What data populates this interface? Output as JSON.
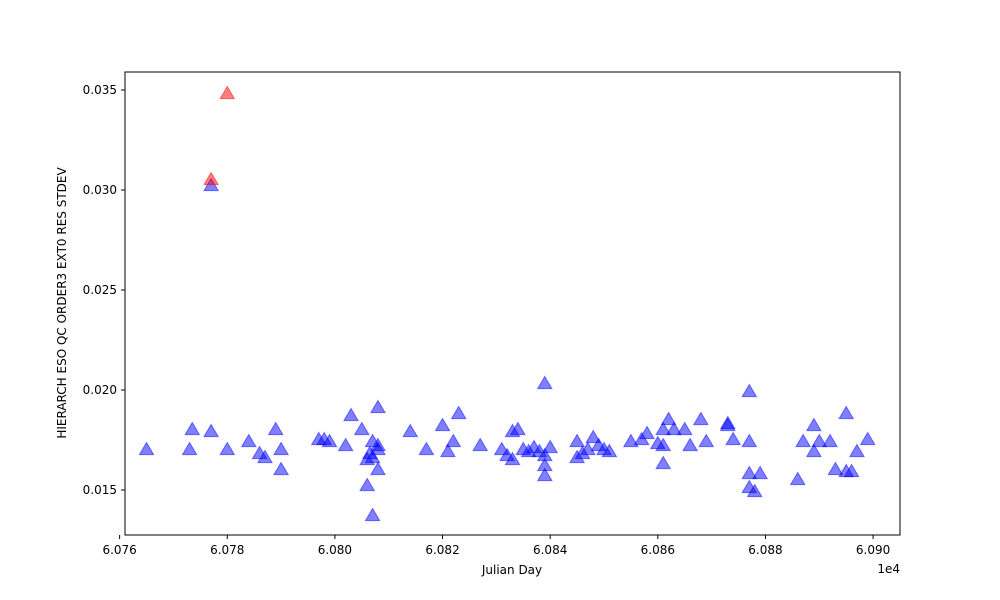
{
  "chart_data": {
    "type": "scatter",
    "xlabel": "Julian Day",
    "ylabel": "HIERARCH ESO QC ORDER3 EXT0 RES STDEV",
    "x_offset_label": "1e4",
    "xlim": [
      6.0761,
      6.0905
    ],
    "ylim": [
      0.01275,
      0.0359
    ],
    "x_tick_values": [
      6.076,
      6.078,
      6.08,
      6.082,
      6.084,
      6.086,
      6.088,
      6.09
    ],
    "x_tick_labels": [
      "6.076",
      "6.078",
      "6.080",
      "6.082",
      "6.084",
      "6.086",
      "6.088",
      "6.090"
    ],
    "y_tick_values": [
      0.015,
      0.02,
      0.025,
      0.03,
      0.035
    ],
    "y_tick_labels": [
      "0.015",
      "0.020",
      "0.025",
      "0.030",
      "0.035"
    ],
    "grid": false,
    "marker": "triangle-up",
    "series": [
      {
        "color": "#0000ff",
        "points": [
          [
            6.0765,
            0.017
          ],
          [
            6.0773,
            0.017
          ],
          [
            6.07735,
            0.018
          ],
          [
            6.0777,
            0.0179
          ],
          [
            6.0777,
            0.0302
          ],
          [
            6.078,
            0.017
          ],
          [
            6.0784,
            0.0174
          ],
          [
            6.0786,
            0.0168
          ],
          [
            6.0787,
            0.0166
          ],
          [
            6.0789,
            0.018
          ],
          [
            6.079,
            0.016
          ],
          [
            6.079,
            0.017
          ],
          [
            6.0797,
            0.0175
          ],
          [
            6.0798,
            0.0175
          ],
          [
            6.0799,
            0.0174
          ],
          [
            6.0802,
            0.0172
          ],
          [
            6.0803,
            0.0187
          ],
          [
            6.0805,
            0.018
          ],
          [
            6.0806,
            0.0152
          ],
          [
            6.0806,
            0.0165
          ],
          [
            6.08065,
            0.0168
          ],
          [
            6.0807,
            0.0137
          ],
          [
            6.0807,
            0.0174
          ],
          [
            6.0807,
            0.0166
          ],
          [
            6.0808,
            0.0172
          ],
          [
            6.0808,
            0.0191
          ],
          [
            6.0808,
            0.017
          ],
          [
            6.0808,
            0.016
          ],
          [
            6.0814,
            0.0179
          ],
          [
            6.0817,
            0.017
          ],
          [
            6.082,
            0.0182
          ],
          [
            6.0821,
            0.0169
          ],
          [
            6.0822,
            0.0174
          ],
          [
            6.0823,
            0.0188
          ],
          [
            6.0827,
            0.0172
          ],
          [
            6.0831,
            0.017
          ],
          [
            6.0832,
            0.0167
          ],
          [
            6.0833,
            0.0165
          ],
          [
            6.0833,
            0.0179
          ],
          [
            6.0834,
            0.018
          ],
          [
            6.0835,
            0.017
          ],
          [
            6.0836,
            0.0169
          ],
          [
            6.0837,
            0.0171
          ],
          [
            6.0838,
            0.0169
          ],
          [
            6.0839,
            0.0167
          ],
          [
            6.0839,
            0.0203
          ],
          [
            6.0839,
            0.0162
          ],
          [
            6.0839,
            0.0157
          ],
          [
            6.084,
            0.0171
          ],
          [
            6.0845,
            0.0174
          ],
          [
            6.0845,
            0.0166
          ],
          [
            6.0846,
            0.0168
          ],
          [
            6.0847,
            0.017
          ],
          [
            6.0848,
            0.0176
          ],
          [
            6.0849,
            0.0172
          ],
          [
            6.085,
            0.017
          ],
          [
            6.0851,
            0.0169
          ],
          [
            6.0855,
            0.0174
          ],
          [
            6.0857,
            0.0175
          ],
          [
            6.0858,
            0.0178
          ],
          [
            6.086,
            0.0173
          ],
          [
            6.0861,
            0.018
          ],
          [
            6.0861,
            0.0172
          ],
          [
            6.0861,
            0.0163
          ],
          [
            6.0862,
            0.0185
          ],
          [
            6.0863,
            0.018
          ],
          [
            6.0865,
            0.018
          ],
          [
            6.0866,
            0.0172
          ],
          [
            6.0868,
            0.0185
          ],
          [
            6.0869,
            0.0174
          ],
          [
            6.0873,
            0.0183
          ],
          [
            6.0873,
            0.0182
          ],
          [
            6.0874,
            0.0175
          ],
          [
            6.0877,
            0.0199
          ],
          [
            6.0877,
            0.0174
          ],
          [
            6.0877,
            0.0158
          ],
          [
            6.0877,
            0.0151
          ],
          [
            6.0878,
            0.0149
          ],
          [
            6.0879,
            0.0158
          ],
          [
            6.0886,
            0.0155
          ],
          [
            6.0887,
            0.0174
          ],
          [
            6.0889,
            0.0182
          ],
          [
            6.0889,
            0.0169
          ],
          [
            6.089,
            0.0174
          ],
          [
            6.0892,
            0.0174
          ],
          [
            6.0893,
            0.016
          ],
          [
            6.0895,
            0.0159
          ],
          [
            6.0895,
            0.0188
          ],
          [
            6.0896,
            0.0159
          ],
          [
            6.0897,
            0.0169
          ],
          [
            6.0899,
            0.0175
          ]
        ]
      },
      {
        "color": "#ff0000",
        "points": [
          [
            6.0777,
            0.0305
          ],
          [
            6.078,
            0.0348
          ]
        ]
      }
    ]
  }
}
